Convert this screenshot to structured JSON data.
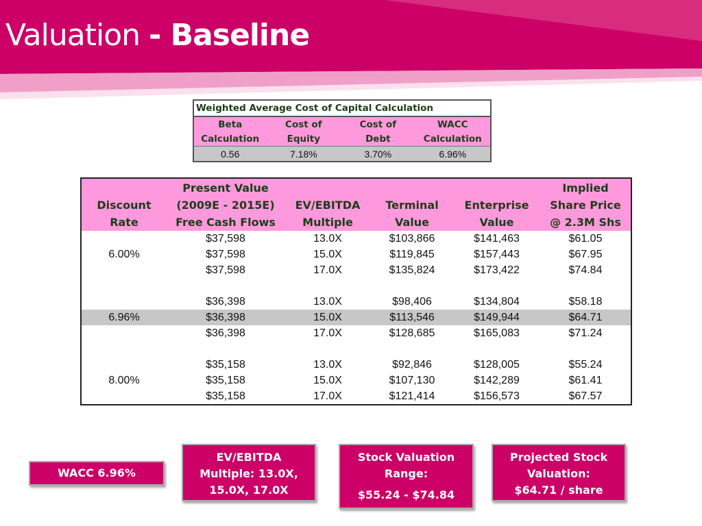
{
  "slide": {
    "title_light": "Valuation ",
    "title_bold": "- Baseline",
    "colors": {
      "banner": "#cc0066",
      "header_fill": "#ff99dd",
      "highlight_row": "#c7c7c7",
      "header_text": "#1d3d16"
    }
  },
  "wacc_table": {
    "caption": "Weighted Average Cost of Capital Calculation",
    "headers": [
      {
        "line1": "Beta",
        "line2": "Calculation"
      },
      {
        "line1": "Cost of",
        "line2": "Equity"
      },
      {
        "line1": "Cost of",
        "line2": "Debt"
      },
      {
        "line1": "WACC",
        "line2": "Calculation"
      }
    ],
    "values": [
      "0.56",
      "7.18%",
      "3.70%",
      "6.96%"
    ]
  },
  "valuation_table": {
    "headers": [
      {
        "l1": "",
        "l2": "Discount",
        "l3": "Rate"
      },
      {
        "l1": "Present Value",
        "l2": "(2009E - 2015E)",
        "l3": "Free Cash Flows"
      },
      {
        "l1": "",
        "l2": "EV/EBITDA",
        "l3": "Multiple"
      },
      {
        "l1": "",
        "l2": "Terminal",
        "l3": "Value"
      },
      {
        "l1": "",
        "l2": "Enterprise",
        "l3": "Value"
      },
      {
        "l1": "Implied",
        "l2": "Share Price",
        "l3": "@ 2.3M Shs"
      }
    ],
    "rows": [
      [
        "",
        "$37,598",
        "13.0X",
        "$103,866",
        "$141,463",
        "$61.05"
      ],
      [
        "6.00%",
        "$37,598",
        "15.0X",
        "$119,845",
        "$157,443",
        "$67.95"
      ],
      [
        "",
        "$37,598",
        "17.0X",
        "$135,824",
        "$173,422",
        "$74.84"
      ],
      [
        "",
        "$36,398",
        "13.0X",
        "$98,406",
        "$134,804",
        "$58.18"
      ],
      [
        "6.96%",
        "$36,398",
        "15.0X",
        "$113,546",
        "$149,944",
        "$64.71"
      ],
      [
        "",
        "$36,398",
        "17.0X",
        "$128,685",
        "$165,083",
        "$71.24"
      ],
      [
        "",
        "$35,158",
        "13.0X",
        "$92,846",
        "$128,005",
        "$55.24"
      ],
      [
        "8.00%",
        "$35,158",
        "15.0X",
        "$107,130",
        "$142,289",
        "$61.41"
      ],
      [
        "",
        "$35,158",
        "17.0X",
        "$121,414",
        "$156,573",
        "$67.57"
      ]
    ]
  },
  "boxes": {
    "wacc": "WACC 6.96%",
    "ev": [
      "EV/EBITDA",
      "Multiple: 13.0X,",
      "15.0X, 17.0X"
    ],
    "range": [
      "Stock Valuation",
      "Range:",
      "$55.24 - $74.84"
    ],
    "projected": [
      "Projected Stock",
      "Valuation:",
      "$64.71 / share"
    ]
  }
}
